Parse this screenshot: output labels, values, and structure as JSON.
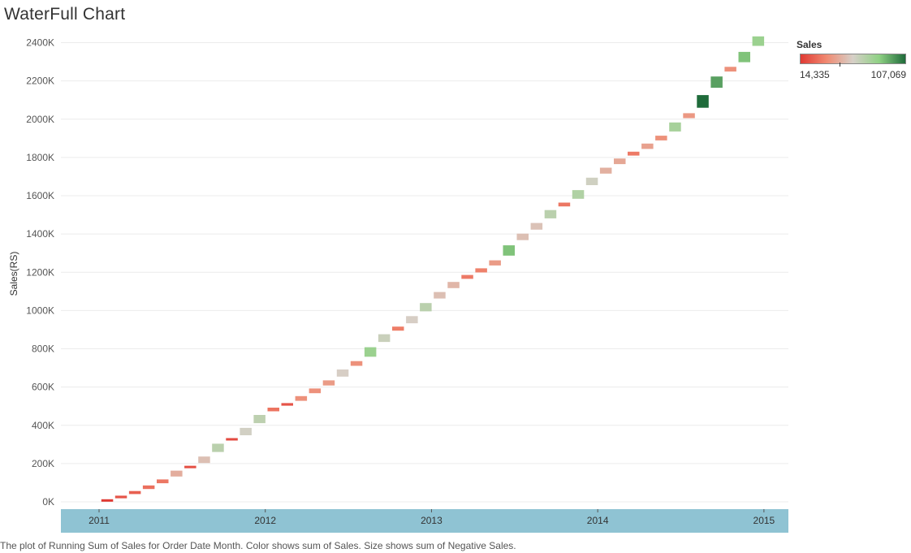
{
  "title": "WaterFull Chart",
  "caption": "The plot of Running Sum of Sales for Order Date Month.  Color shows sum of Sales.  Size shows sum of Negative Sales.",
  "legend": {
    "title": "Sales",
    "min_label": "14,335",
    "max_label": "107,069",
    "colors": [
      "#e03a33",
      "#f08a72",
      "#d6d0c8",
      "#8fd184",
      "#1f6b3a"
    ]
  },
  "chart_data": {
    "type": "bar",
    "subtype": "waterfall",
    "ylabel": "Sales(RS)",
    "xlabel": "",
    "ylim": [
      -30,
      2460
    ],
    "y_unit": "K",
    "y_ticks": [
      "0K",
      "200K",
      "400K",
      "600K",
      "800K",
      "1000K",
      "1200K",
      "1400K",
      "1600K",
      "1800K",
      "2000K",
      "2200K",
      "2400K"
    ],
    "y_tick_values": [
      0,
      200,
      400,
      600,
      800,
      1000,
      1200,
      1400,
      1600,
      1800,
      2000,
      2200,
      2400
    ],
    "x_ticks": [
      "2011",
      "2012",
      "2013",
      "2014",
      "2015"
    ],
    "x_tick_month_index": [
      0,
      12,
      24,
      36,
      48
    ],
    "grid": true,
    "categories": [
      "2011-01",
      "2011-02",
      "2011-03",
      "2011-04",
      "2011-05",
      "2011-06",
      "2011-07",
      "2011-08",
      "2011-09",
      "2011-10",
      "2011-11",
      "2011-12",
      "2012-01",
      "2012-02",
      "2012-03",
      "2012-04",
      "2012-05",
      "2012-06",
      "2012-07",
      "2012-08",
      "2012-09",
      "2012-10",
      "2012-11",
      "2012-12",
      "2013-01",
      "2013-02",
      "2013-03",
      "2013-04",
      "2013-05",
      "2013-06",
      "2013-07",
      "2013-08",
      "2013-09",
      "2013-10",
      "2013-11",
      "2013-12",
      "2014-01",
      "2014-02",
      "2014-03",
      "2014-04",
      "2014-05",
      "2014-06",
      "2014-07",
      "2014-08",
      "2014-09",
      "2014-10",
      "2014-11",
      "2014-12"
    ],
    "values": [
      14.3,
      22,
      25,
      30,
      32,
      49,
      20,
      55,
      70,
      19,
      62,
      69,
      31,
      22,
      40,
      40,
      43,
      60,
      40,
      80,
      65,
      34,
      60,
      70,
      55,
      52,
      33,
      35,
      43,
      87,
      55,
      56,
      70,
      32,
      73,
      63,
      50,
      47,
      33,
      45,
      40,
      76,
      42,
      107,
      95,
      40,
      87,
      80
    ],
    "running_total": [
      14.3,
      36.3,
      61.3,
      91.3,
      123.3,
      172.3,
      192.3,
      247.3,
      317.3,
      336.3,
      398.3,
      467.3,
      498.3,
      520.3,
      560.3,
      600.3,
      643.3,
      703.3,
      743.3,
      823.3,
      888.3,
      922.3,
      982.3,
      1052.3,
      1107.3,
      1159.3,
      1192.3,
      1227.3,
      1270.3,
      1357.3,
      1412.3,
      1468.3,
      1538.3,
      1570.3,
      1643.3,
      1706.3,
      1756.3,
      1803.3,
      1836.3,
      1881.3,
      1921.3,
      1997.3,
      2039.3,
      2146.3,
      2241.3,
      2281.3,
      2368.3,
      2448.3
    ]
  }
}
